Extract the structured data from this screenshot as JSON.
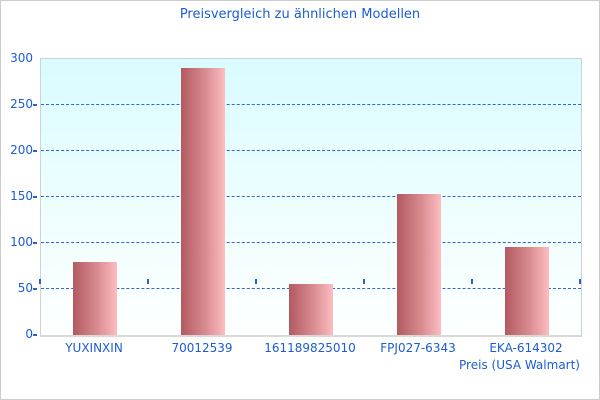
{
  "title": "Preisvergleich zu ähnlichen Modellen",
  "chart_data": {
    "type": "bar",
    "title": "Preisvergleich zu ähnlichen Modellen",
    "categories": [
      "YUXINXIN",
      "70012539",
      "161189825010",
      "FPJ027-6343",
      "EKA-614302"
    ],
    "values": [
      79,
      290,
      55,
      153,
      96
    ],
    "xlabel": "Preis (USA Walmart)",
    "ylabel": "",
    "ylim": [
      0,
      300
    ],
    "ytick_step": 50,
    "yticks": [
      "0",
      "50",
      "100",
      "150",
      "200",
      "250",
      "300"
    ],
    "grid": "horizontal-dashed",
    "legend": "none",
    "bar_fill": "horizontal gradient dark rose to light pink"
  },
  "colors": {
    "text_blue": "#1d5cd1",
    "gridline_blue": "#3366cc",
    "bar_gradient_left": "#b25a60",
    "bar_gradient_right": "#fcbdc1",
    "plot_bg_top": "#d9fcff",
    "plot_bg_bottom": "#feffff",
    "plot_border": "#ccd2d6",
    "outer_border": "#cccccc"
  }
}
